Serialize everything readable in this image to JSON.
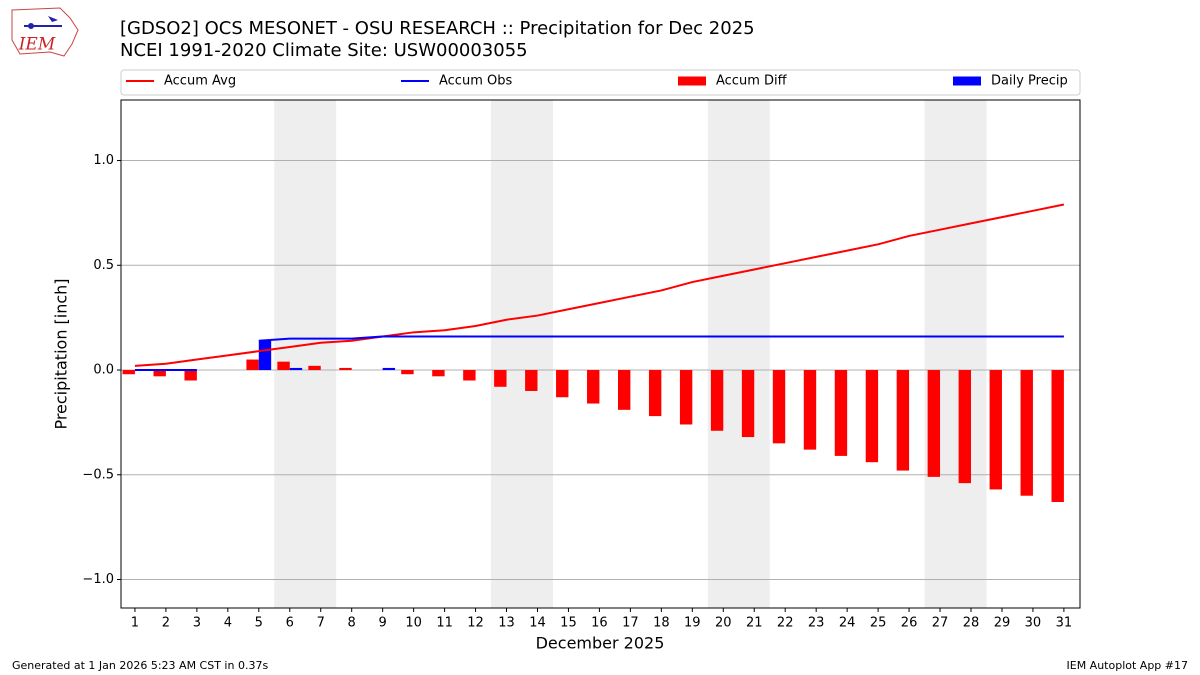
{
  "logo_text": "IEM",
  "footer": {
    "left": "Generated at 1 Jan 2026 5:23 AM CST in 0.37s",
    "right": "IEM Autoplot App #17"
  },
  "chart_data": {
    "type": "combo",
    "title": "[GDSO2] OCS MESONET - OSU RESEARCH :: Precipitation for Dec 2025",
    "subtitle": "NCEI 1991-2020 Climate Site: USW00003055",
    "xlabel": "December 2025",
    "ylabel": "Precipitation [inch]",
    "x": [
      1,
      2,
      3,
      4,
      5,
      6,
      7,
      8,
      9,
      10,
      11,
      12,
      13,
      14,
      15,
      16,
      17,
      18,
      19,
      20,
      21,
      22,
      23,
      24,
      25,
      26,
      27,
      28,
      29,
      30,
      31
    ],
    "xlim": [
      0.55,
      31.52
    ],
    "xticks": [
      1,
      2,
      3,
      4,
      5,
      6,
      7,
      8,
      9,
      10,
      11,
      12,
      13,
      14,
      15,
      16,
      17,
      18,
      19,
      20,
      21,
      22,
      23,
      24,
      25,
      26,
      27,
      28,
      29,
      30,
      31
    ],
    "ylim": [
      -1.136,
      1.289
    ],
    "yticks": [
      {
        "value": -1.0,
        "label": "−1.0"
      },
      {
        "value": -0.5,
        "label": "−0.5"
      },
      {
        "value": 0.0,
        "label": "0.0"
      },
      {
        "value": 0.5,
        "label": "0.5"
      },
      {
        "value": 1.0,
        "label": "1.0"
      }
    ],
    "grid": true,
    "highlight_spans": [
      [
        5.5,
        7.5
      ],
      [
        12.5,
        14.5
      ],
      [
        19.5,
        21.5
      ],
      [
        26.5,
        28.5
      ]
    ],
    "highlight_color": "#eeeeee",
    "series": [
      {
        "name": "Accum Avg",
        "type": "line",
        "color": "#ff0000",
        "values": [
          0.02,
          0.03,
          0.05,
          0.07,
          0.09,
          0.11,
          0.13,
          0.14,
          0.16,
          0.18,
          0.19,
          0.21,
          0.24,
          0.26,
          0.29,
          0.32,
          0.35,
          0.38,
          0.42,
          0.45,
          0.48,
          0.51,
          0.54,
          0.57,
          0.6,
          0.64,
          0.67,
          0.7,
          0.73,
          0.76,
          0.79
        ]
      },
      {
        "name": "Accum Obs",
        "type": "line",
        "color": "#0000ff",
        "values": [
          0,
          0,
          0,
          null,
          0.14,
          0.15,
          0.15,
          0.15,
          0.16,
          0.16,
          0.16,
          0.16,
          0.16,
          0.16,
          0.16,
          0.16,
          0.16,
          0.16,
          0.16,
          0.16,
          0.16,
          0.16,
          0.16,
          0.16,
          0.16,
          0.16,
          0.16,
          0.16,
          0.16,
          0.16,
          0.16
        ]
      },
      {
        "name": "Accum Diff",
        "type": "bar",
        "color": "#ff0000",
        "values": [
          -0.02,
          -0.03,
          -0.05,
          null,
          0.05,
          0.04,
          0.02,
          0.01,
          0,
          -0.02,
          -0.03,
          -0.05,
          -0.08,
          -0.1,
          -0.13,
          -0.16,
          -0.19,
          -0.22,
          -0.26,
          -0.29,
          -0.32,
          -0.35,
          -0.38,
          -0.41,
          -0.44,
          -0.48,
          -0.51,
          -0.54,
          -0.57,
          -0.6,
          -0.63
        ]
      },
      {
        "name": "Daily Precip",
        "type": "bar",
        "color": "#0000ff",
        "values": [
          0,
          0,
          0,
          null,
          0.14,
          0.01,
          0,
          0,
          0.01,
          0,
          0,
          0,
          0,
          0,
          0,
          0,
          0,
          0,
          0,
          0,
          0,
          0,
          0,
          0,
          0,
          0,
          0,
          0,
          0,
          0,
          0
        ]
      }
    ]
  }
}
